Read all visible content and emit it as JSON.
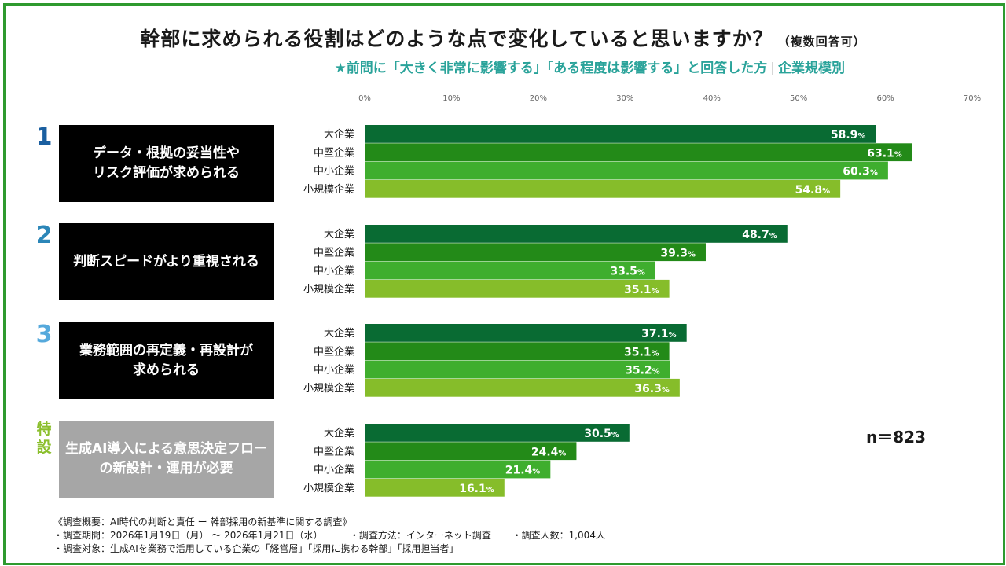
{
  "title": "幹部に求められる役割はどのような点で変化していると思いますか？",
  "title_note": "（複数回答可）",
  "subtitle": "★前問に「大きく非常に影響する」「ある程度は影響する」と回答した方",
  "subtitle_group": "企業規模別",
  "sample_size": "n＝823",
  "colors": {
    "large": "#096b33",
    "midsize": "#238a18",
    "small": "#3fae2e",
    "micro": "#86bd2a",
    "accent": "#2e9a2e",
    "rank1": "#1a5fa0",
    "rank2": "#2b86b8",
    "rank3": "#55a9dc",
    "special": "#8bbf2d"
  },
  "items": [
    {
      "rank": "1",
      "label": "データ・根拠の妥当性や\nリスク評価が求められる",
      "box": "black",
      "rank_color": "#1a5fa0"
    },
    {
      "rank": "2",
      "label": "判断スピードがより重視される",
      "box": "black",
      "rank_color": "#2b86b8"
    },
    {
      "rank": "3",
      "label": "業務範囲の再定義・再設計が\n求められる",
      "box": "black",
      "rank_color": "#55a9dc"
    },
    {
      "rank": "特\n設",
      "label": "生成AI導入による意思決定フロー\nの新設計・運用が必要",
      "box": "grey",
      "rank_color": "#8bbf2d"
    }
  ],
  "chart_data": {
    "type": "bar",
    "orientation": "horizontal",
    "x_ticks": [
      "0%",
      "10%",
      "20%",
      "30%",
      "40%",
      "50%",
      "60%",
      "70%"
    ],
    "xlim": [
      0,
      70
    ],
    "value_suffix": "%",
    "series_names": [
      "大企業",
      "中堅企業",
      "中小企業",
      "小規模企業"
    ],
    "groups": [
      {
        "values": [
          58.9,
          63.1,
          60.3,
          54.8
        ]
      },
      {
        "values": [
          48.7,
          39.3,
          33.5,
          35.1
        ]
      },
      {
        "values": [
          37.1,
          35.1,
          35.2,
          36.3
        ]
      },
      {
        "values": [
          30.5,
          24.4,
          21.4,
          16.1
        ]
      }
    ]
  },
  "footer": {
    "line1": "《調査概要：AI時代の判断と責任 ー 幹部採用の新基準に関する調査》",
    "line2a": "・調査期間：2026年1月19日（月） 〜 2026年1月21日（水）",
    "line2b": "・調査方法：インターネット調査",
    "line2c": "・調査人数：1,004人",
    "line3": "・調査対象：生成AIを業務で活用している企業の「経営層」「採用に携わる幹部」「採用担当者」"
  }
}
